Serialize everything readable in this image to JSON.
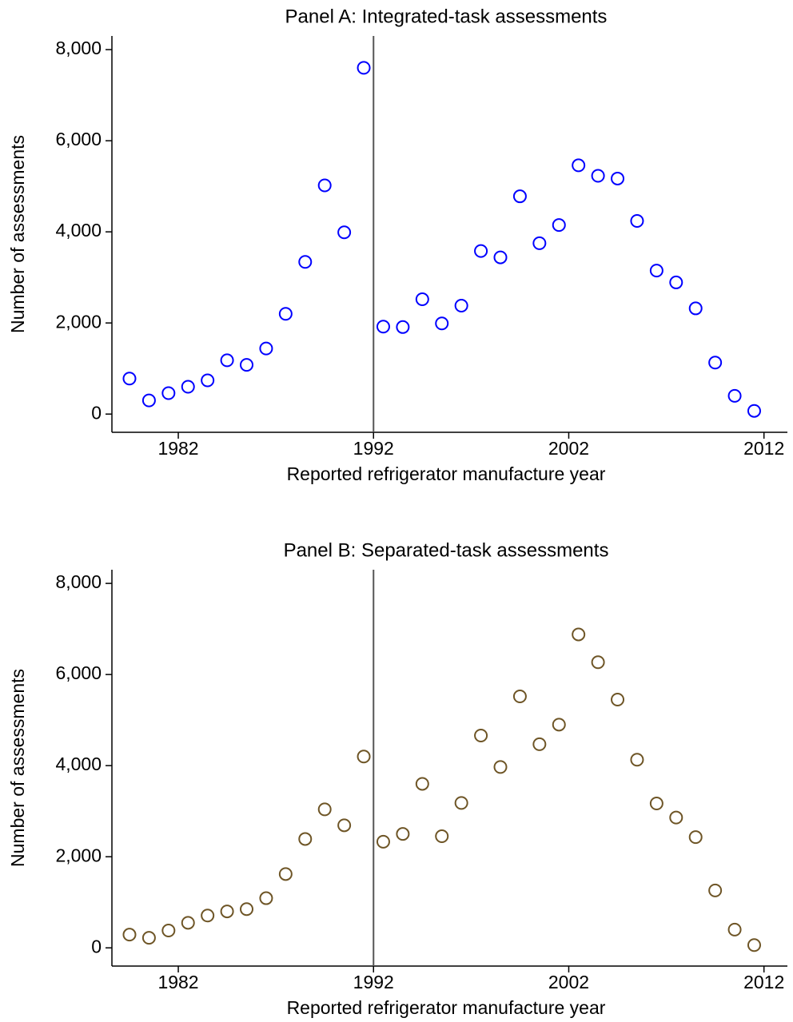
{
  "chart_data": [
    {
      "type": "scatter",
      "title": "Panel A: Integrated-task assessments",
      "x_label": "Reported refrigerator manufacture year",
      "y_label": "Number of assessments",
      "x": [
        1979.5,
        1980.5,
        1981.5,
        1982.5,
        1983.5,
        1984.5,
        1985.5,
        1986.5,
        1987.5,
        1988.5,
        1989.5,
        1990.5,
        1991.5,
        1992.5,
        1993.5,
        1994.5,
        1995.5,
        1996.5,
        1997.5,
        1998.5,
        1999.5,
        2000.5,
        2001.5,
        2002.5,
        2003.5,
        2004.5,
        2005.5,
        2006.5,
        2007.5,
        2008.5,
        2009.5,
        2010.5,
        2011.5
      ],
      "series": [
        {
          "name": "Integrated-task assessments",
          "color": "#0000ff",
          "values": [
            780,
            300,
            460,
            600,
            740,
            1180,
            1080,
            1440,
            2200,
            3340,
            5020,
            3990,
            7600,
            1920,
            1910,
            2520,
            1990,
            2380,
            3580,
            3440,
            4780,
            3750,
            4150,
            5460,
            5230,
            5170,
            4240,
            3150,
            2890,
            2320,
            1130,
            400,
            70
          ]
        }
      ],
      "xlim": [
        1978.6,
        2013.2
      ],
      "xticks": [
        1982,
        1992,
        2002,
        2012
      ],
      "ylim": [
        -400,
        8300
      ],
      "yticks": [
        0,
        {
          "value": 2000,
          "label": "2,000"
        },
        {
          "value": 4000,
          "label": "4,000"
        },
        {
          "value": 6000,
          "label": "6,000"
        },
        {
          "value": 8000,
          "label": "8,000"
        }
      ],
      "vline": 1992,
      "grid": false
    },
    {
      "type": "scatter",
      "title": "Panel B: Separated-task assessments",
      "x_label": "Reported refrigerator manufacture year",
      "y_label": "Number of assessments",
      "x": [
        1979.5,
        1980.5,
        1981.5,
        1982.5,
        1983.5,
        1984.5,
        1985.5,
        1986.5,
        1987.5,
        1988.5,
        1989.5,
        1990.5,
        1991.5,
        1992.5,
        1993.5,
        1994.5,
        1995.5,
        1996.5,
        1997.5,
        1998.5,
        1999.5,
        2000.5,
        2001.5,
        2002.5,
        2003.5,
        2004.5,
        2005.5,
        2006.5,
        2007.5,
        2008.5,
        2009.5,
        2010.5,
        2011.5
      ],
      "series": [
        {
          "name": "Separated-task assessments",
          "color": "#6e5526",
          "values": [
            290,
            220,
            380,
            550,
            710,
            800,
            850,
            1090,
            1620,
            2390,
            3040,
            2690,
            4200,
            2330,
            2500,
            3600,
            2450,
            3180,
            4660,
            3970,
            5520,
            4470,
            4900,
            6880,
            6270,
            5450,
            4130,
            3170,
            2860,
            2430,
            1260,
            400,
            60
          ]
        }
      ],
      "xlim": [
        1978.6,
        2013.2
      ],
      "xticks": [
        1982,
        1992,
        2002,
        2012
      ],
      "ylim": [
        -400,
        8300
      ],
      "yticks": [
        0,
        {
          "value": 2000,
          "label": "2,000"
        },
        {
          "value": 4000,
          "label": "4,000"
        },
        {
          "value": 6000,
          "label": "6,000"
        },
        {
          "value": 8000,
          "label": "8,000"
        }
      ],
      "vline": 1992,
      "grid": false
    }
  ]
}
